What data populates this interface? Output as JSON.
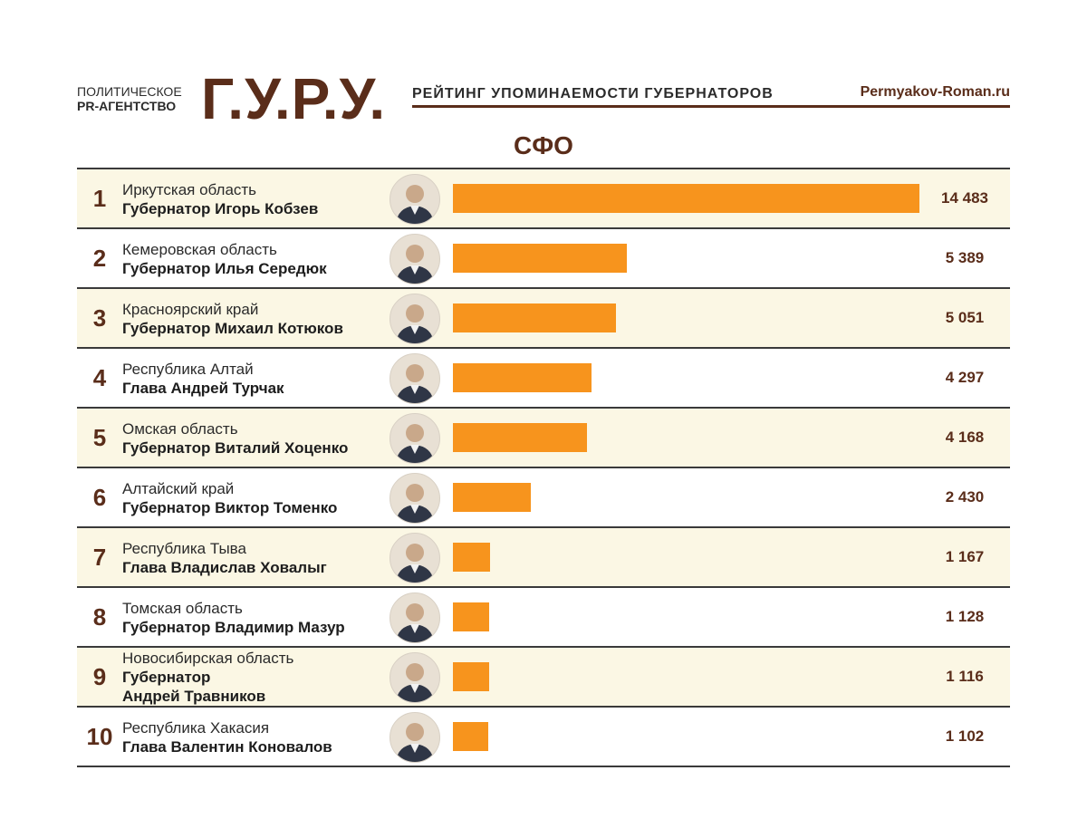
{
  "header": {
    "agency_line1": "ПОЛИТИЧЕСКОЕ",
    "agency_line2": "PR-АГЕНТСТВО",
    "logo": "Г.У.Р.У.",
    "rating_title": "РЕЙТИНГ УПОМИНАЕМОСТИ ГУБЕРНАТОРОВ",
    "site": "Permyakov-Roman.ru"
  },
  "region_title": "СФО",
  "colors": {
    "bar": "#f7941d",
    "brand": "#5a2d1a",
    "row_alt": "#fbf7e4"
  },
  "chart_data": {
    "type": "bar",
    "title": "СФО",
    "max": 14483,
    "rows": [
      {
        "rank": "1",
        "region": "Иркутская область",
        "governor": "Губернатор Игорь Кобзев",
        "value": 14483,
        "label": "14 483",
        "avatar": "photo-icon"
      },
      {
        "rank": "2",
        "region": "Кемеровская область",
        "governor": "Губернатор Илья Середюк",
        "value": 5389,
        "label": "5 389",
        "avatar": "photo-icon"
      },
      {
        "rank": "3",
        "region": "Красноярский край",
        "governor": "Губернатор Михаил Котюков",
        "value": 5051,
        "label": "5 051",
        "avatar": "photo-icon"
      },
      {
        "rank": "4",
        "region": "Республика Алтай",
        "governor": "Глава Андрей Турчак",
        "value": 4297,
        "label": "4 297",
        "avatar": "photo-icon"
      },
      {
        "rank": "5",
        "region": "Омская область",
        "governor": "Губернатор Виталий Хоценко",
        "value": 4168,
        "label": "4 168",
        "avatar": "photo-icon"
      },
      {
        "rank": "6",
        "region": "Алтайский край",
        "governor": "Губернатор Виктор Томенко",
        "value": 2430,
        "label": "2 430",
        "avatar": "photo-icon"
      },
      {
        "rank": "7",
        "region": "Республика Тыва",
        "governor": "Глава Владислав Ховалыг",
        "value": 1167,
        "label": "1 167",
        "avatar": "photo-icon"
      },
      {
        "rank": "8",
        "region": "Томская область",
        "governor": "Губернатор Владимир Мазур",
        "value": 1128,
        "label": "1 128",
        "avatar": "photo-icon"
      },
      {
        "rank": "9",
        "region": "Новосибирская область",
        "governor": "Губернатор",
        "governor2": "Андрей Травников",
        "value": 1116,
        "label": "1 116",
        "avatar": "photo-icon"
      },
      {
        "rank": "10",
        "region": "Республика Хакасия",
        "governor": "Глава Валентин Коновалов",
        "value": 1102,
        "label": "1 102",
        "avatar": "photo-icon"
      }
    ]
  }
}
